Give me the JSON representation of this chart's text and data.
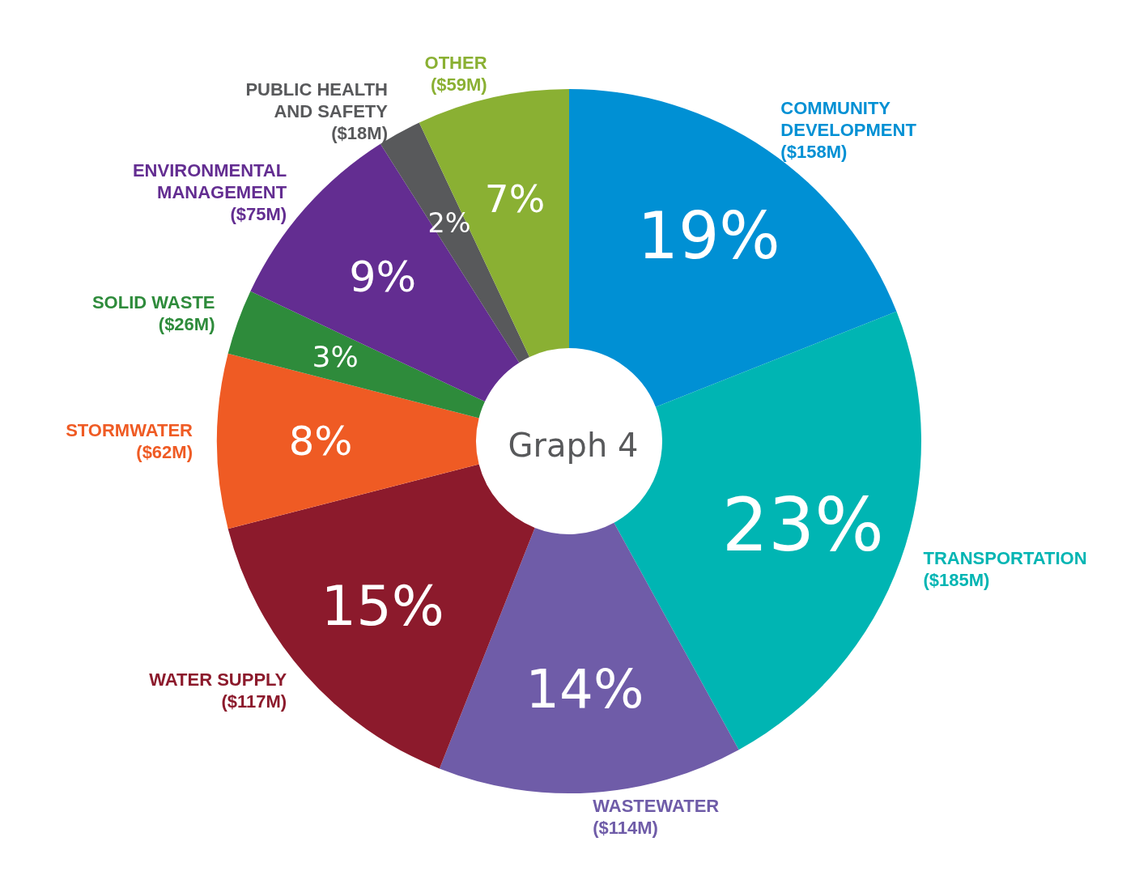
{
  "chart_data": {
    "type": "donut",
    "title": "Graph 4",
    "categories": [
      "COMMUNITY\nDEVELOPMENT\n($158M)",
      "TRANSPORTATION\n($185M)",
      "WASTEWATER\n($114M)",
      "WATER SUPPLY\n($117M)",
      "STORMWATER\n($62M)",
      "SOLID WASTE\n($26M)",
      "ENVIRONMENTAL\nMANAGEMENT\n($75M)",
      "PUBLIC HEALTH\nAND SAFETY\n($18M)",
      "OTHER\n($59M)"
    ],
    "values": [
      19,
      23,
      14,
      15,
      8,
      3,
      9,
      2,
      7
    ],
    "value_labels": [
      "19%",
      "23%",
      "14%",
      "15%",
      "8%",
      "3%",
      "9%",
      "2%",
      "7%"
    ],
    "colors": [
      "#0090d4",
      "#00b5b3",
      "#6f5ca8",
      "#8c1a2c",
      "#ef5b24",
      "#2e8b3b",
      "#632d91",
      "#58595b",
      "#8ab033"
    ]
  }
}
